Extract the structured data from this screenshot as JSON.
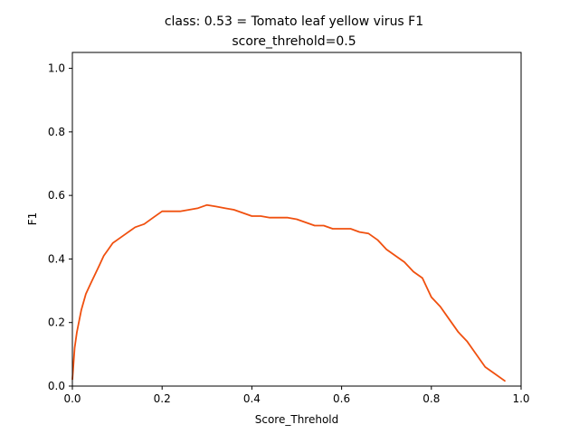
{
  "chart_data": {
    "type": "line",
    "title_line1": "class: 0.53 = Tomato leaf yellow virus F1",
    "title_line2": "score_threhold=0.5",
    "xlabel": "Score_Threhold",
    "ylabel": "F1",
    "xlim": [
      0.0,
      1.0
    ],
    "ylim": [
      0.0,
      1.05
    ],
    "xticks": [
      "0.0",
      "0.2",
      "0.4",
      "0.6",
      "0.8",
      "1.0"
    ],
    "yticks": [
      "0.0",
      "0.2",
      "0.4",
      "0.6",
      "0.8",
      "1.0"
    ],
    "grid": false,
    "color": "#f0500f",
    "series": [
      {
        "x": [
          0.0,
          0.005,
          0.01,
          0.02,
          0.03,
          0.04,
          0.05,
          0.06,
          0.07,
          0.08,
          0.09,
          0.1,
          0.12,
          0.14,
          0.16,
          0.18,
          0.2,
          0.22,
          0.24,
          0.26,
          0.28,
          0.3,
          0.32,
          0.34,
          0.36,
          0.38,
          0.4,
          0.42,
          0.44,
          0.46,
          0.48,
          0.5,
          0.52,
          0.54,
          0.56,
          0.58,
          0.6,
          0.62,
          0.64,
          0.66,
          0.68,
          0.7,
          0.72,
          0.74,
          0.76,
          0.78,
          0.8,
          0.82,
          0.84,
          0.86,
          0.88,
          0.9,
          0.92,
          0.94,
          0.965
        ],
        "values": [
          0.02,
          0.12,
          0.17,
          0.24,
          0.29,
          0.32,
          0.35,
          0.38,
          0.41,
          0.43,
          0.45,
          0.46,
          0.48,
          0.5,
          0.51,
          0.53,
          0.55,
          0.55,
          0.55,
          0.555,
          0.56,
          0.57,
          0.565,
          0.56,
          0.555,
          0.545,
          0.535,
          0.535,
          0.53,
          0.53,
          0.53,
          0.525,
          0.515,
          0.505,
          0.505,
          0.495,
          0.495,
          0.495,
          0.485,
          0.48,
          0.46,
          0.43,
          0.41,
          0.39,
          0.36,
          0.34,
          0.28,
          0.25,
          0.21,
          0.17,
          0.14,
          0.1,
          0.06,
          0.04,
          0.015
        ]
      }
    ]
  }
}
